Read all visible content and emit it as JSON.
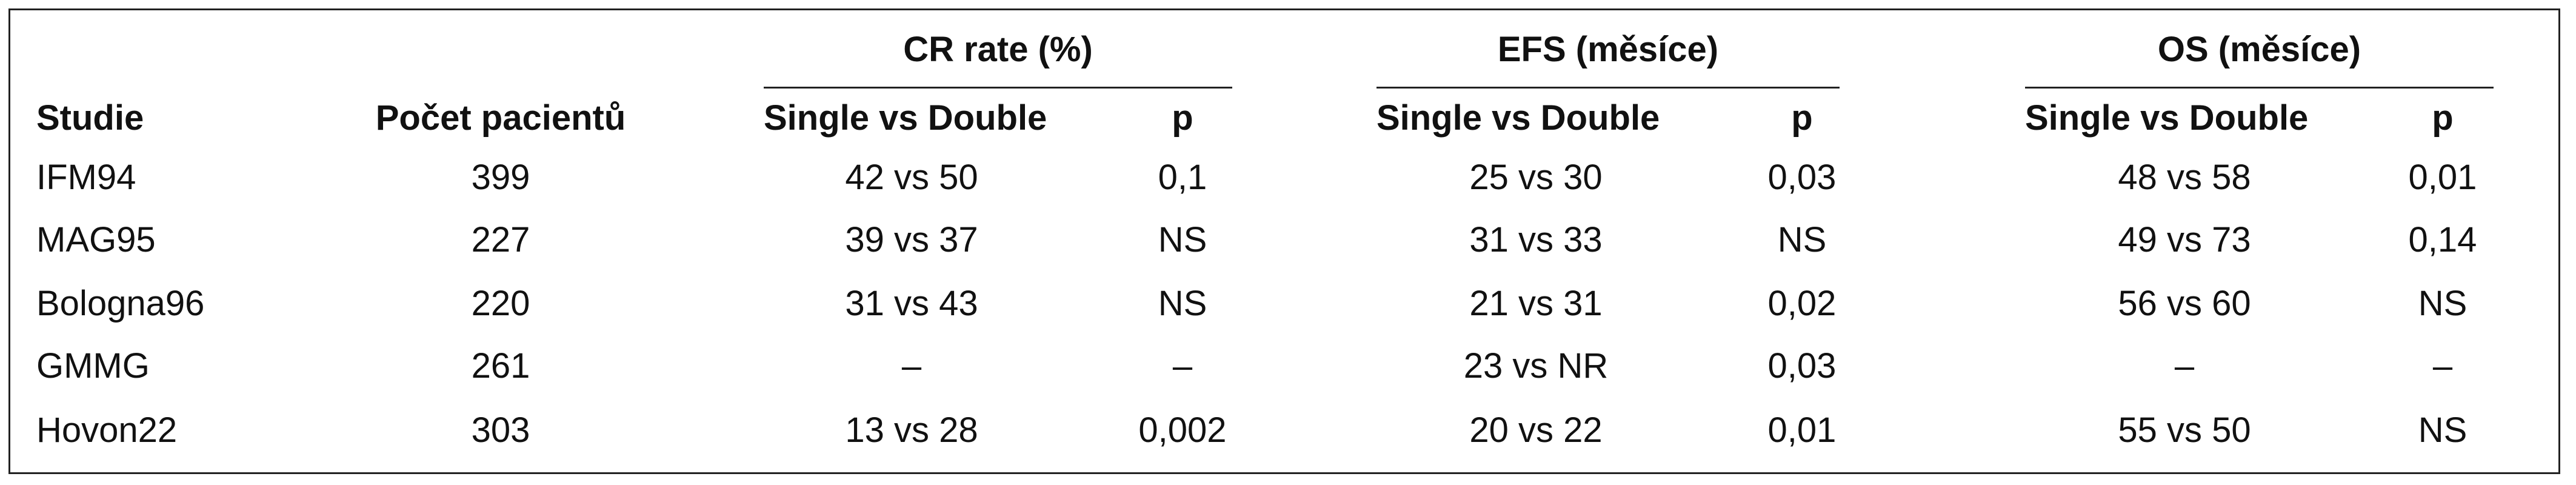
{
  "table": {
    "group_headers": [
      "CR rate (%)",
      "EFS (měsíce)",
      "OS (měsíce)"
    ],
    "column_headers": [
      "Studie",
      "Počet pacientů",
      "Single vs Double",
      "p",
      "Single vs Double",
      "p",
      "Single vs Double",
      "p"
    ],
    "rows": [
      [
        "IFM94",
        "399",
        "42 vs 50",
        "0,1",
        "25 vs 30",
        "0,03",
        "48 vs 58",
        "0,01"
      ],
      [
        "MAG95",
        "227",
        "39 vs 37",
        "NS",
        "31 vs 33",
        "NS",
        "49 vs 73",
        "0,14"
      ],
      [
        "Bologna96",
        "220",
        "31 vs 43",
        "NS",
        "21 vs 31",
        "0,02",
        "56 vs 60",
        "NS"
      ],
      [
        "GMMG",
        "261",
        "–",
        "–",
        "23 vs NR",
        "0,03",
        "–",
        "–"
      ],
      [
        "Hovon22",
        "303",
        "13 vs 28",
        "0,002",
        "20 vs 22",
        "0,01",
        "55 vs 50",
        "NS"
      ]
    ]
  }
}
